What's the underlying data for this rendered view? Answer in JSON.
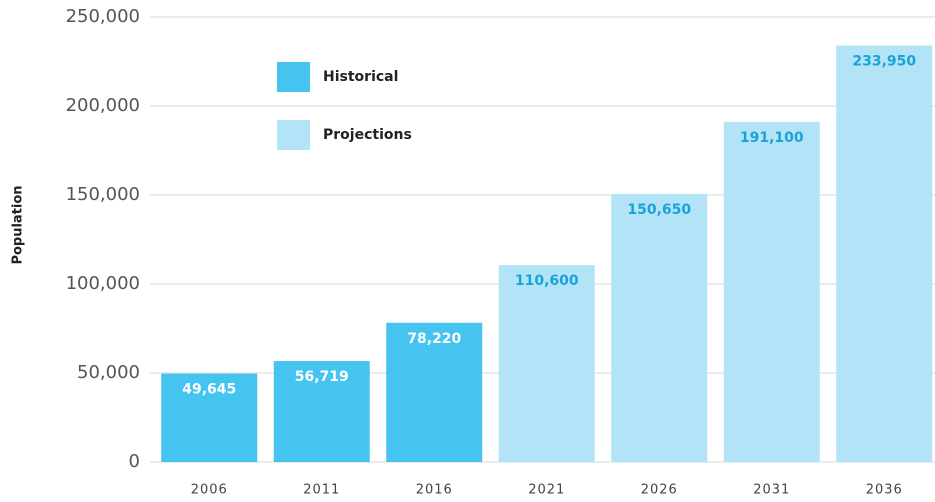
{
  "chart_data": {
    "type": "bar",
    "y_label": "Population",
    "categories": [
      "2006",
      "2011",
      "2016",
      "2021",
      "2026",
      "2031",
      "2036"
    ],
    "series": [
      {
        "name": "Historical",
        "color": "#45c4f0",
        "label_color": "#ffffff",
        "values": [
          49645,
          56719,
          78220,
          null,
          null,
          null,
          null
        ],
        "value_labels": [
          "49,645",
          "56,719",
          "78,220",
          null,
          null,
          null,
          null
        ]
      },
      {
        "name": "Projections",
        "color": "#b3e3f7",
        "label_color": "#1aa3d9",
        "values": [
          null,
          null,
          null,
          110600,
          150650,
          191100,
          233950
        ],
        "value_labels": [
          null,
          null,
          null,
          "110,600",
          "150,650",
          "191,100",
          "233,950"
        ]
      }
    ],
    "ylim": [
      0,
      250000
    ],
    "yticks": [
      0,
      {
        "value": 50000,
        "label": "50,000"
      },
      {
        "value": 100000,
        "label": "100,000"
      },
      {
        "value": 150000,
        "label": "150,000"
      },
      {
        "value": 200000,
        "label": "200,000"
      },
      {
        "value": 250000,
        "label": "250,000"
      }
    ],
    "grid": true
  }
}
